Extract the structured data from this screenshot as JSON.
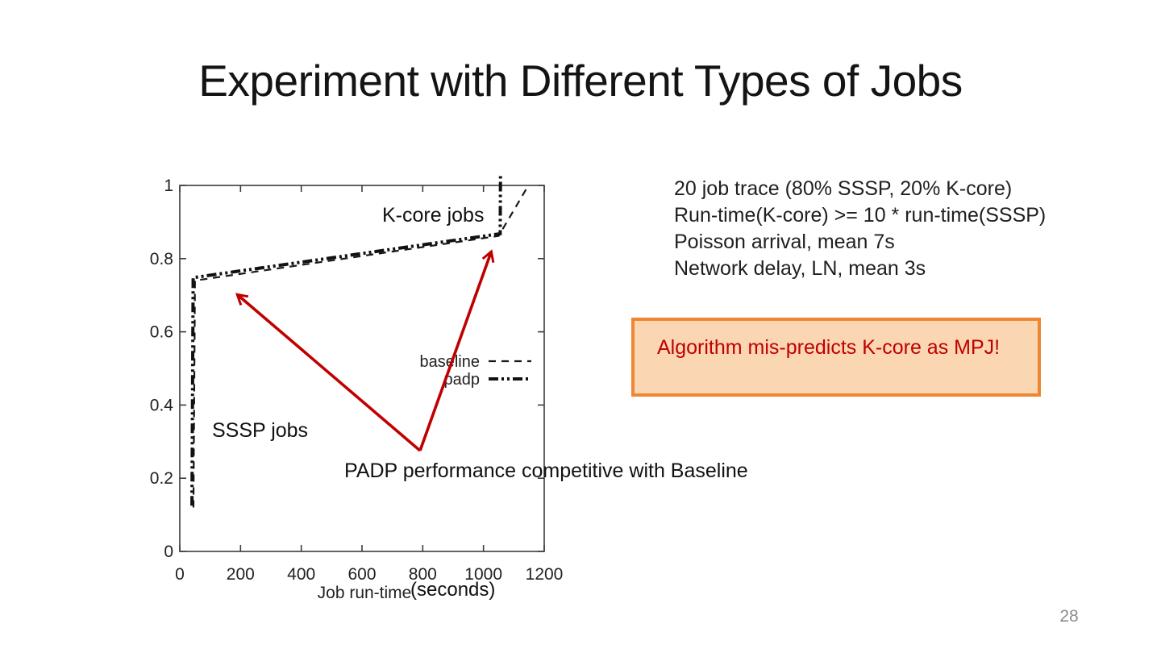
{
  "slide": {
    "title": "Experiment with Different Types of Jobs",
    "page_number": "28"
  },
  "info_block": {
    "lines": [
      "20 job trace (80% SSSP, 20% K-core)",
      "Run-time(K-core) >= 10 * run-time(SSSP)",
      "Poisson arrival, mean 7s",
      "Network delay, LN, mean 3s"
    ]
  },
  "callout": {
    "text": "Algorithm mis-predicts K-core as MPJ!",
    "fill_color": "#FBD6B2",
    "border_color": "#ED8733",
    "text_color": "#C00000"
  },
  "annotations": {
    "kcore_label": "K-core jobs",
    "sssp_label": "SSSP jobs",
    "padp_note": "PADP performance competitive with Baseline",
    "seconds_suffix": "(seconds)"
  },
  "arrow_color": "#C00000",
  "chart_data": {
    "type": "line",
    "title": "",
    "xlabel": "Job run-time",
    "ylabel": "",
    "xlim": [
      0,
      1200
    ],
    "ylim": [
      0,
      1
    ],
    "xticks": [
      0,
      200,
      400,
      600,
      800,
      1000,
      1200
    ],
    "yticks": [
      0,
      0.2,
      0.4,
      0.6,
      0.8,
      1
    ],
    "grid": false,
    "legend_position": "center-right",
    "axis_color": "#3c3c3c",
    "tick_label_color": "#222222",
    "series": [
      {
        "name": "baseline",
        "dash": "dashed",
        "width": 2.2,
        "color": "#1a1a1a",
        "points": [
          [
            45,
            0.12
          ],
          [
            50,
            0.74
          ],
          [
            1050,
            0.862
          ],
          [
            1148,
            1.0
          ]
        ]
      },
      {
        "name": "padp",
        "dash": "dash-dot-dot",
        "width": 4,
        "color": "#111111",
        "points": [
          [
            40,
            0.125
          ],
          [
            44,
            0.748
          ],
          [
            1055,
            0.868
          ],
          [
            1056,
            1.028
          ]
        ]
      }
    ]
  }
}
